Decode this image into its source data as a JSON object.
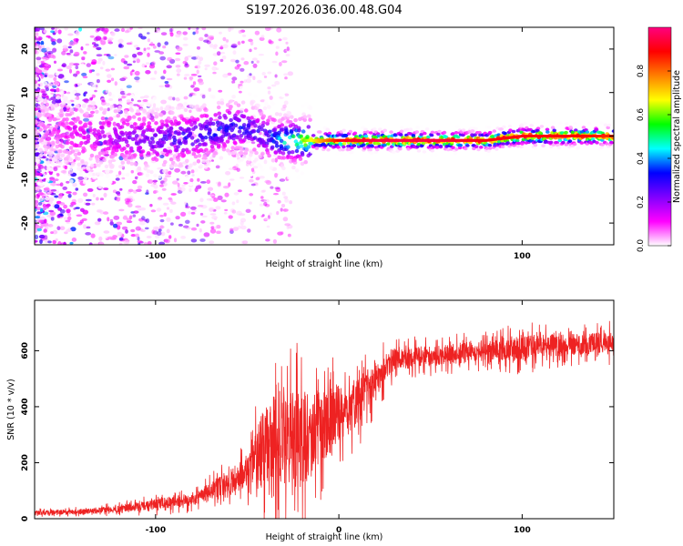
{
  "title": "S197.2026.036.00.48.G04",
  "chart_data": [
    {
      "type": "heatmap",
      "xlabel": "Height of straight line (km)",
      "ylabel": "Frequency (Hz)",
      "xlim": [
        -166,
        150
      ],
      "ylim": [
        -25,
        25
      ],
      "x_ticks": [
        -100,
        0,
        100
      ],
      "y_ticks": [
        -20,
        -10,
        0,
        10,
        20
      ],
      "grid": false,
      "colorbar": {
        "label": "Normalized spectral amplitude",
        "range": [
          0,
          1
        ],
        "ticks": [
          "0.0",
          "0.2",
          "0.4",
          "0.6",
          "0.8"
        ],
        "colors": [
          "#ffffff",
          "#ff00ff",
          "#8000ff",
          "#0000ff",
          "#00ffff",
          "#00ff00",
          "#ffff00",
          "#ff8000",
          "#ff0000",
          "#ff0080"
        ]
      },
      "ridge": {
        "x": [
          -166,
          -140,
          -120,
          -100,
          -80,
          -60,
          -50,
          -40,
          -30,
          -20,
          0,
          20,
          50,
          80,
          100,
          120,
          150
        ],
        "freq": [
          2,
          0,
          0,
          -1,
          0,
          2,
          2,
          0,
          -1,
          -1,
          -1,
          -1,
          -1,
          -1,
          0,
          0,
          0
        ],
        "amplitude": [
          0.05,
          0.15,
          0.2,
          0.25,
          0.3,
          0.35,
          0.3,
          0.3,
          0.45,
          0.6,
          0.9,
          0.95,
          0.95,
          0.9,
          0.9,
          0.9,
          0.85
        ]
      }
    },
    {
      "type": "line",
      "xlabel": "Height of straight line (km)",
      "ylabel": "SNR (10 * v/v)",
      "xlim": [
        -166,
        150
      ],
      "ylim": [
        0,
        780
      ],
      "x_ticks": [
        -100,
        0,
        100
      ],
      "y_ticks": [
        0,
        200,
        400,
        600
      ],
      "color": "#ee2222",
      "grid": false,
      "series": [
        {
          "name": "SNR",
          "x": [
            -166,
            -140,
            -120,
            -100,
            -80,
            -70,
            -60,
            -50,
            -40,
            -30,
            -20,
            -10,
            0,
            10,
            20,
            30,
            50,
            80,
            100,
            120,
            150
          ],
          "mean": [
            20,
            25,
            35,
            50,
            70,
            100,
            130,
            170,
            250,
            300,
            280,
            320,
            380,
            420,
            500,
            570,
            580,
            600,
            610,
            620,
            630
          ],
          "spread": [
            10,
            12,
            15,
            25,
            30,
            40,
            55,
            75,
            200,
            220,
            220,
            160,
            130,
            110,
            80,
            50,
            45,
            45,
            60,
            50,
            50
          ]
        }
      ]
    }
  ]
}
